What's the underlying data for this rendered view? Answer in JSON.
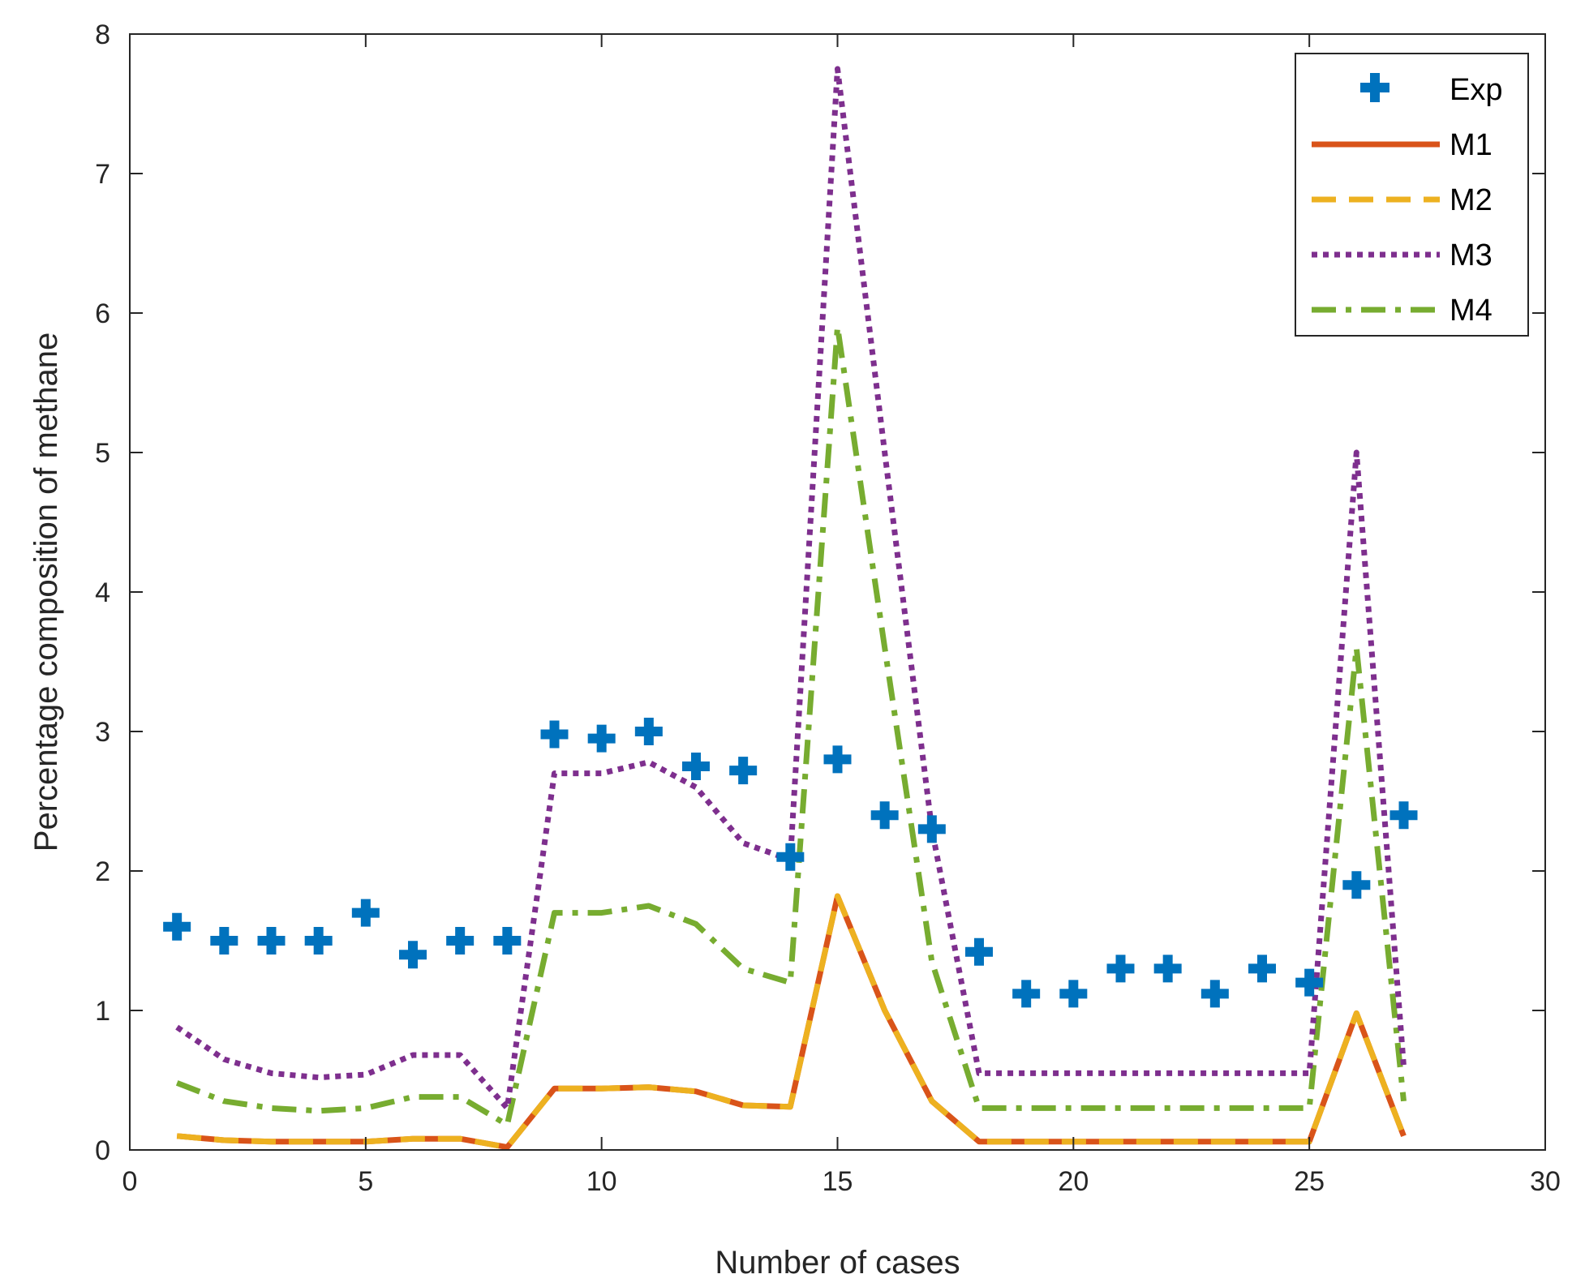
{
  "chart_data": {
    "type": "line",
    "title": "",
    "xlabel": "Number of cases",
    "ylabel": "Percentage composition of methane",
    "xlim": [
      0,
      30
    ],
    "ylim": [
      0,
      8
    ],
    "xticks": [
      0,
      5,
      10,
      15,
      20,
      25,
      30
    ],
    "yticks": [
      0,
      1,
      2,
      3,
      4,
      5,
      6,
      7,
      8
    ],
    "grid": false,
    "legend_position": "top-right",
    "x": [
      1,
      2,
      3,
      4,
      5,
      6,
      7,
      8,
      9,
      10,
      11,
      12,
      13,
      14,
      15,
      16,
      17,
      18,
      19,
      20,
      21,
      22,
      23,
      24,
      25,
      26,
      27
    ],
    "series": [
      {
        "name": "Exp",
        "style": "marker",
        "color": "#0072BD",
        "values": [
          1.6,
          1.5,
          1.5,
          1.5,
          1.7,
          1.4,
          1.5,
          1.5,
          2.98,
          2.95,
          3.0,
          2.75,
          2.72,
          2.1,
          2.8,
          2.4,
          2.3,
          1.42,
          1.12,
          1.12,
          1.3,
          1.3,
          1.12,
          1.3,
          1.2,
          1.9,
          2.4
        ]
      },
      {
        "name": "M1",
        "style": "solid",
        "color": "#D95319",
        "values": [
          0.1,
          0.07,
          0.06,
          0.06,
          0.06,
          0.08,
          0.08,
          0.02,
          0.44,
          0.44,
          0.45,
          0.42,
          0.32,
          0.31,
          1.82,
          1.0,
          0.35,
          0.06,
          0.06,
          0.06,
          0.06,
          0.06,
          0.06,
          0.06,
          0.06,
          0.98,
          0.1
        ]
      },
      {
        "name": "M2",
        "style": "dashed",
        "color": "#EDB120",
        "values": [
          0.1,
          0.07,
          0.06,
          0.06,
          0.06,
          0.08,
          0.08,
          0.02,
          0.44,
          0.44,
          0.45,
          0.42,
          0.32,
          0.31,
          1.82,
          1.0,
          0.35,
          0.06,
          0.06,
          0.06,
          0.06,
          0.06,
          0.06,
          0.06,
          0.06,
          0.98,
          0.1
        ]
      },
      {
        "name": "M3",
        "style": "dotted",
        "color": "#7E2F8E",
        "values": [
          0.88,
          0.65,
          0.55,
          0.52,
          0.54,
          0.68,
          0.68,
          0.3,
          2.7,
          2.7,
          2.78,
          2.6,
          2.2,
          2.08,
          7.75,
          5.0,
          2.3,
          0.55,
          0.55,
          0.55,
          0.55,
          0.55,
          0.55,
          0.55,
          0.55,
          5.0,
          0.6
        ]
      },
      {
        "name": "M4",
        "style": "dashdot",
        "color": "#77AC30",
        "values": [
          0.48,
          0.35,
          0.3,
          0.28,
          0.3,
          0.38,
          0.38,
          0.18,
          1.7,
          1.7,
          1.75,
          1.62,
          1.3,
          1.2,
          5.9,
          3.6,
          1.35,
          0.3,
          0.3,
          0.3,
          0.3,
          0.3,
          0.3,
          0.3,
          0.3,
          3.6,
          0.35
        ]
      }
    ]
  }
}
